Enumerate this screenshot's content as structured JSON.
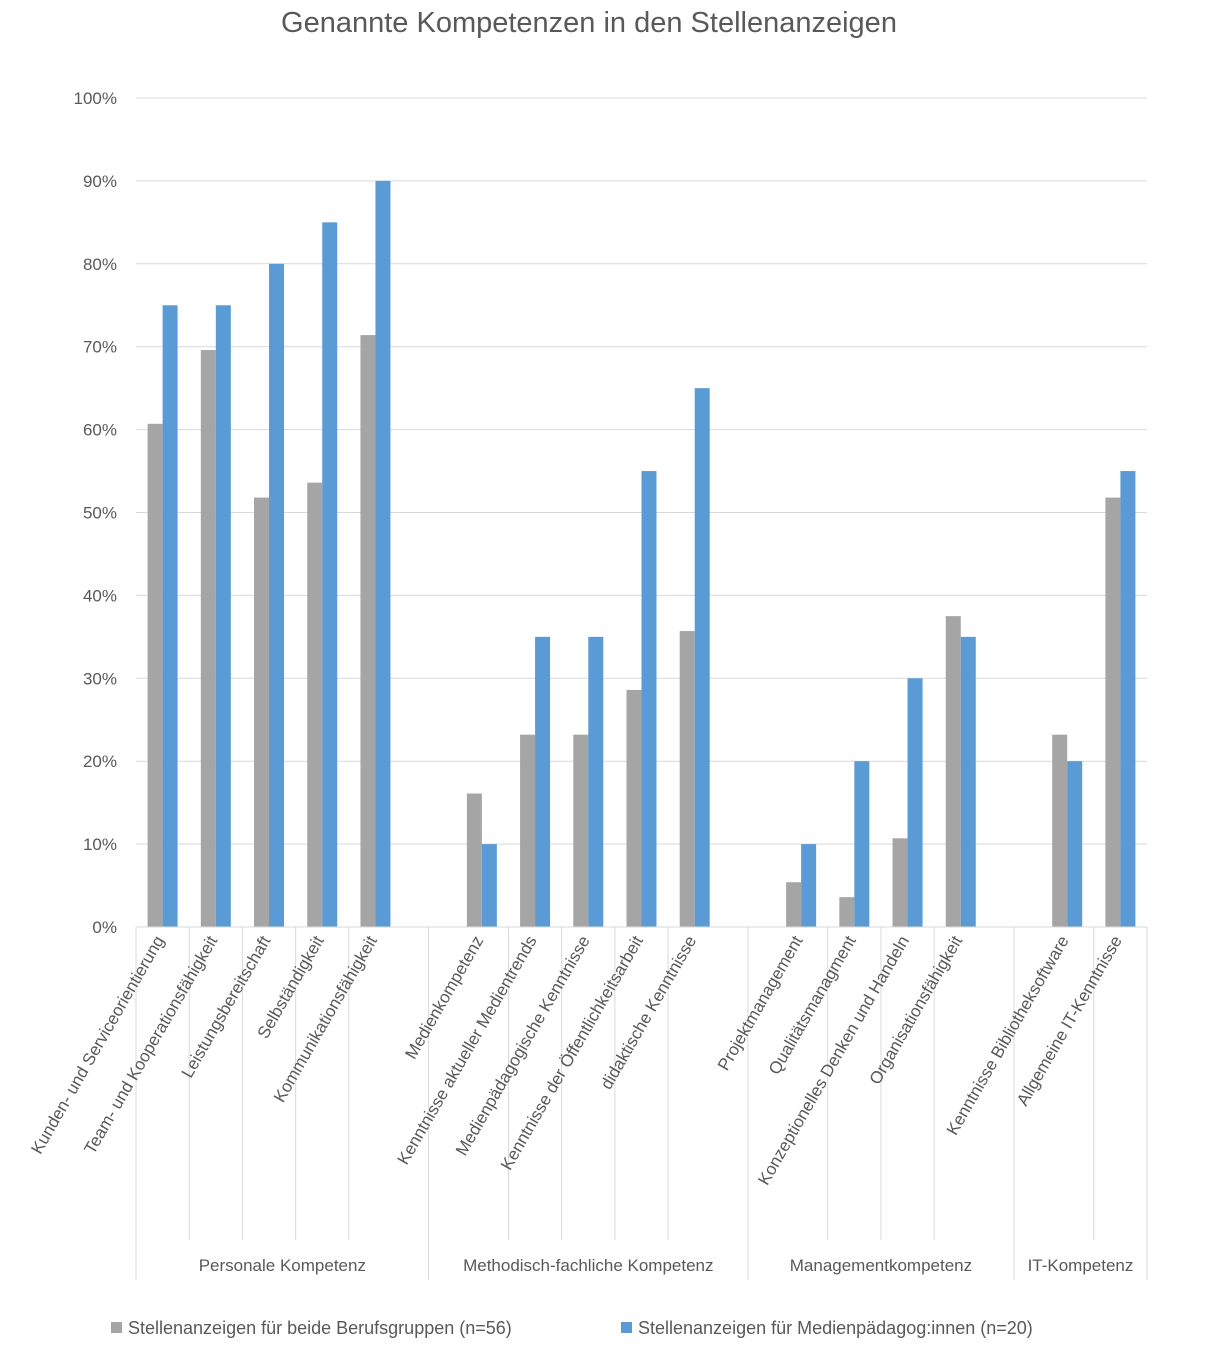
{
  "chart_data": {
    "type": "bar",
    "title": "Genannte Kompetenzen in den Stellenanzeigen",
    "ylim": [
      0,
      100
    ],
    "y_ticks": [
      "0%",
      "10%",
      "20%",
      "30%",
      "40%",
      "50%",
      "60%",
      "70%",
      "80%",
      "90%",
      "100%"
    ],
    "grid": true,
    "legend_position": "bottom",
    "groups": [
      {
        "name": "Personale Kompetenz",
        "categories": [
          "Kunden- und Serviceorientierung",
          "Team- und Kooperationsfähigkeit",
          "Leistungsbereitschaft",
          "Selbständigkeit",
          "Kommunikationsfähigkeit"
        ]
      },
      {
        "name": "Methodisch-fachliche Kompetenz",
        "categories": [
          "Medienkompetenz",
          "Kenntnisse aktueller Medientrends",
          "Medienpädagogische Kenntnisse",
          "Kenntnisse der Öffentlichkeitsarbeit",
          "didaktische Kenntnisse"
        ]
      },
      {
        "name": "Managementkompetenz",
        "categories": [
          "Projektmanagement",
          "Qualitätsmanagment",
          "Konzeptionelles Denken und Handeln",
          "Organisationsfähigkeit"
        ]
      },
      {
        "name": "IT-Kompetenz",
        "categories": [
          "Kenntnisse Bibliotheksoftware",
          "Allgemeine IT-Kenntnisse"
        ]
      }
    ],
    "series": [
      {
        "name": "Stellenanzeigen für beide Berufsgruppen (n=56)",
        "color": "#a5a5a5",
        "values": [
          60.7,
          69.6,
          51.8,
          53.6,
          71.4,
          16.1,
          23.2,
          23.2,
          28.6,
          35.7,
          5.4,
          3.6,
          10.7,
          37.5,
          23.2,
          51.8
        ]
      },
      {
        "name": "Stellenanzeigen für Medienpädagog:innen (n=20)",
        "color": "#5b9bd5",
        "values": [
          75,
          75,
          80,
          85,
          90,
          10,
          35,
          35,
          55,
          65,
          10,
          20,
          30,
          35,
          20,
          55
        ]
      }
    ]
  }
}
